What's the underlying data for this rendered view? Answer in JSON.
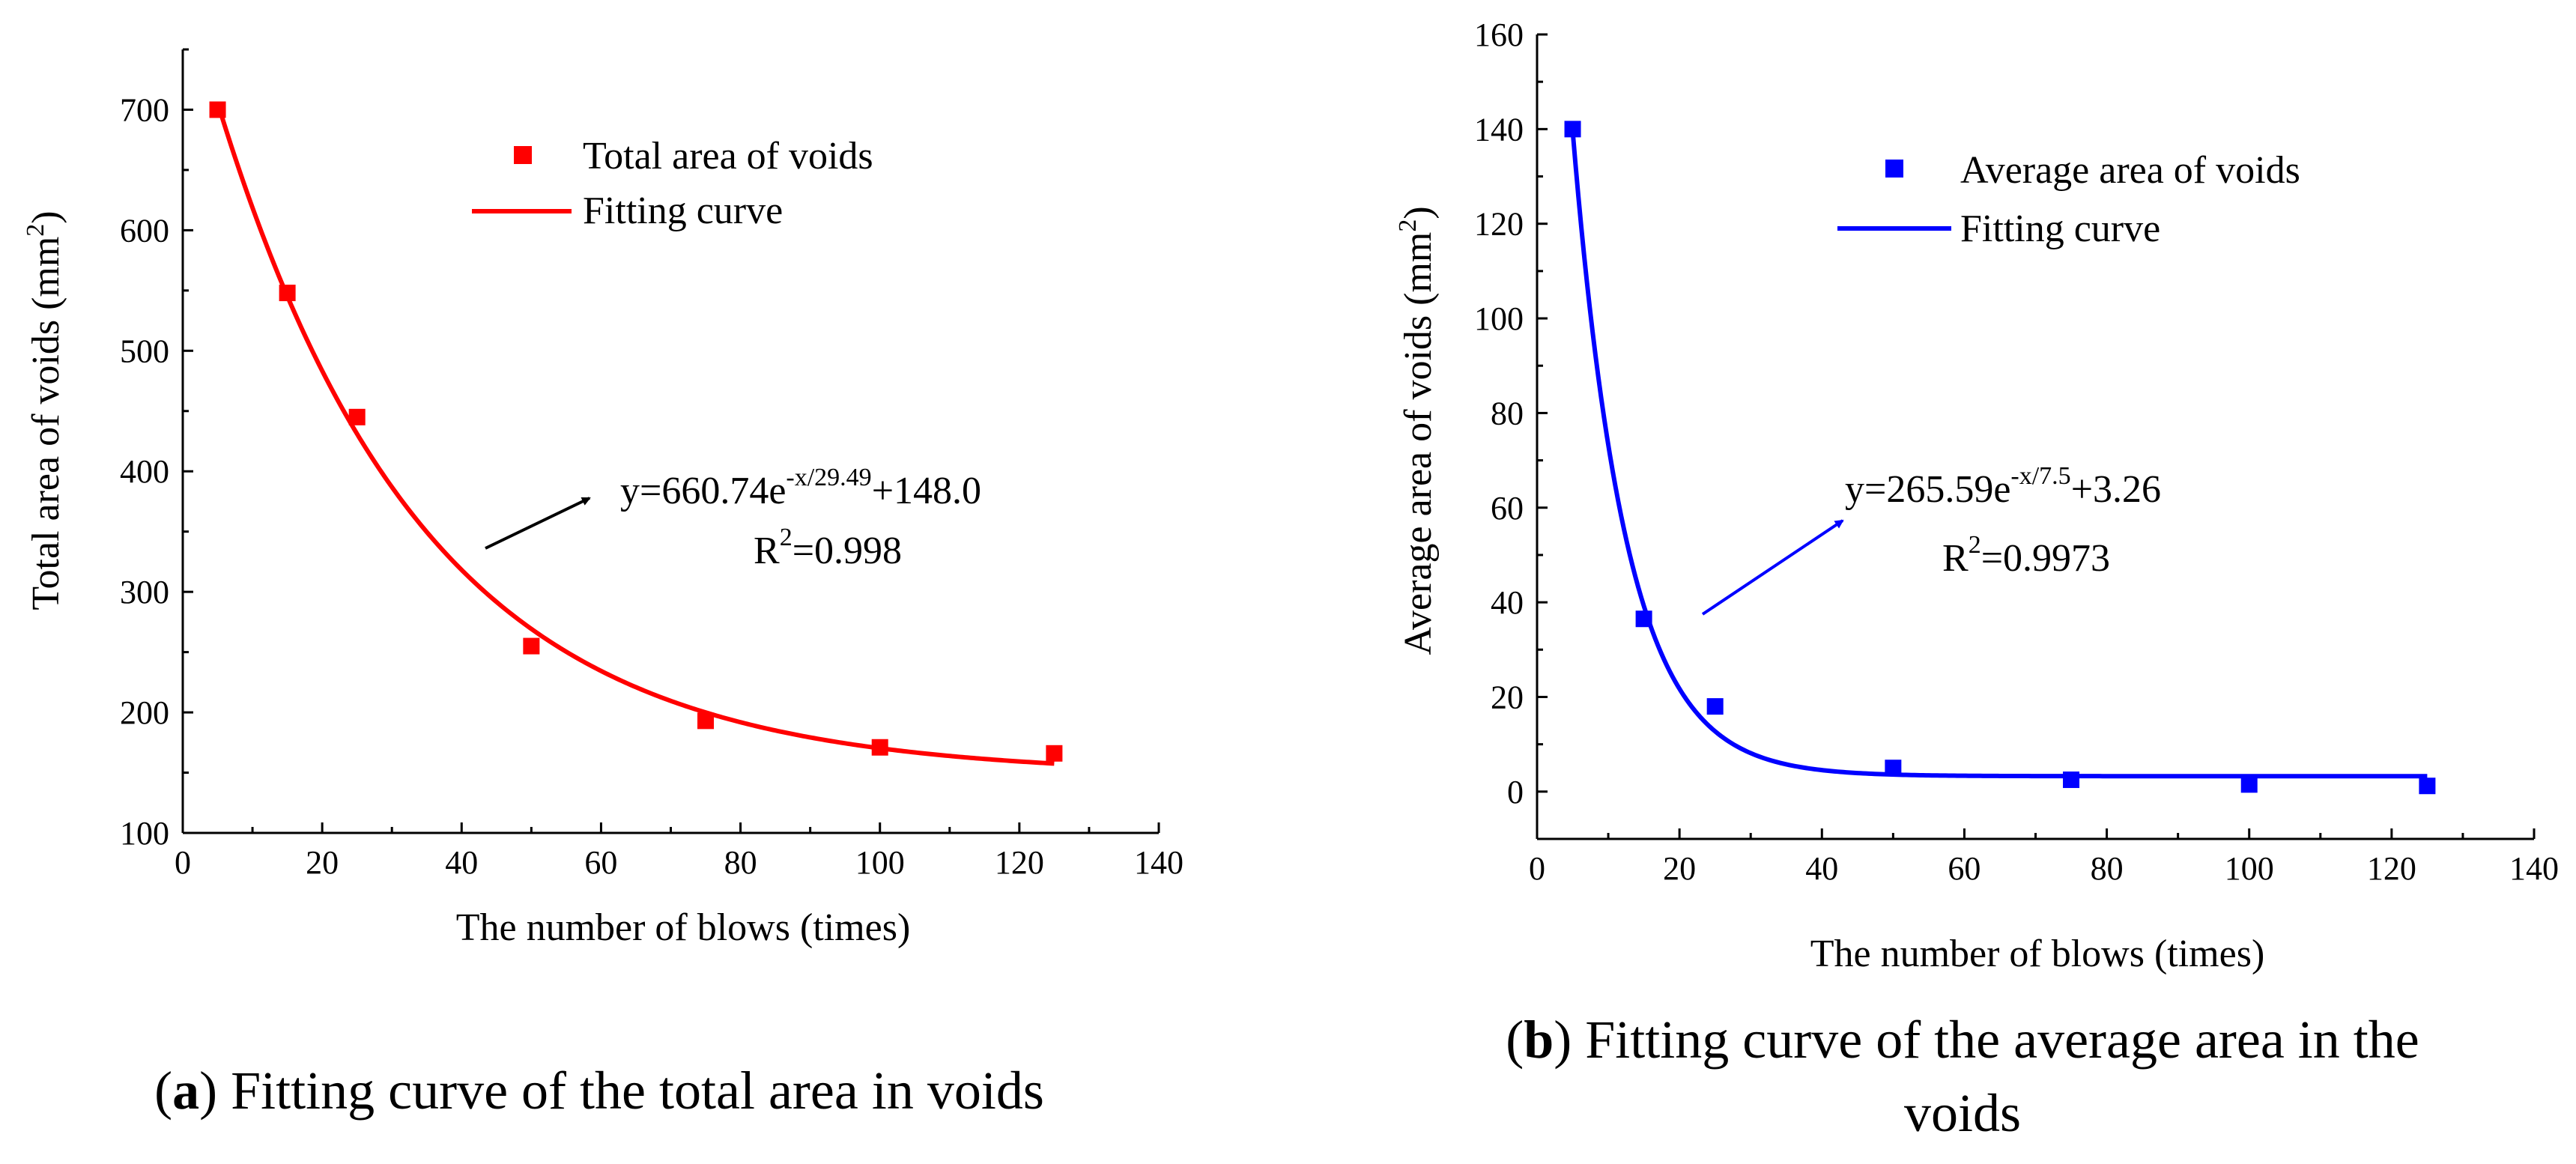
{
  "chart_data": [
    {
      "type": "scatter",
      "title": "",
      "xlabel": "The number of blows (times)",
      "ylabel": "Total area of voids (mm",
      "ylabel_sup": "2",
      "ylabel_tail": ")",
      "xlim": [
        0,
        140
      ],
      "ylim": [
        100,
        750
      ],
      "xticks": [
        "0",
        "20",
        "40",
        "60",
        "80",
        "100",
        "120",
        "140"
      ],
      "yticks": [
        "100",
        "200",
        "300",
        "400",
        "500",
        "600",
        "700"
      ],
      "color": "#ff0000",
      "series": [
        {
          "name": "Total area of voids",
          "kind": "scatter",
          "x": [
            5,
            15,
            25,
            50,
            75,
            100,
            125
          ],
          "y": [
            700,
            548,
            445,
            255,
            193,
            171,
            166
          ]
        },
        {
          "name": "Fitting curve",
          "kind": "line",
          "model": {
            "a": 660.74,
            "b": 29.49,
            "c": 148.0
          }
        }
      ],
      "annotation": {
        "equation_prefix": "y=660.74e",
        "equation_sup": "-x/29.49",
        "equation_suffix": "+148.0",
        "r2_prefix": "R",
        "r2_sup": "2",
        "r2_suffix": "=0.998"
      },
      "caption_label": "a",
      "caption_text": "Fitting curve of the total area in voids",
      "caption_open": "(",
      "caption_close": ")"
    },
    {
      "type": "scatter",
      "title": "",
      "xlabel": "The number of blows (times)",
      "ylabel": "Average area of voids (mm",
      "ylabel_sup": "2",
      "ylabel_tail": ")",
      "xlim": [
        0,
        140
      ],
      "ylim": [
        -10,
        160
      ],
      "xticks": [
        "0",
        "20",
        "40",
        "60",
        "80",
        "100",
        "120",
        "140"
      ],
      "yticks": [
        "0",
        "20",
        "40",
        "60",
        "80",
        "100",
        "120",
        "140",
        "160"
      ],
      "color": "#0000ff",
      "series": [
        {
          "name": "Average area of voids",
          "kind": "scatter",
          "x": [
            5,
            15,
            25,
            50,
            75,
            100,
            125
          ],
          "y": [
            140,
            36.5,
            18,
            5,
            2.5,
            1.5,
            1.2
          ]
        },
        {
          "name": "Fitting curve",
          "kind": "line",
          "model": {
            "a": 265.59,
            "b": 7.5,
            "c": 3.26
          }
        }
      ],
      "annotation": {
        "equation_prefix": "y=265.59e",
        "equation_sup": "-x/7.5",
        "equation_suffix": "+3.26",
        "r2_prefix": "R",
        "r2_sup": "2",
        "r2_suffix": "=0.9973"
      },
      "caption_label": "b",
      "caption_text": "Fitting curve of the average area in the",
      "caption_text2": "voids",
      "caption_open": "(",
      "caption_close": ")"
    }
  ]
}
